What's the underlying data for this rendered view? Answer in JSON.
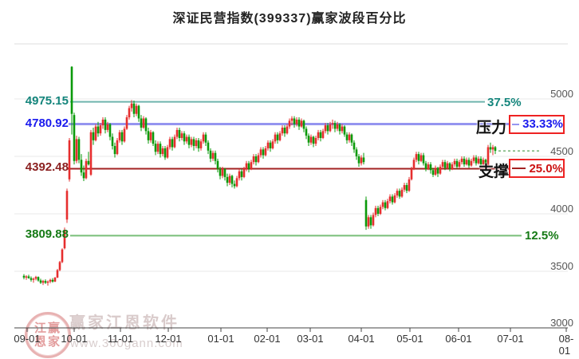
{
  "title": "深证民营指数(399337)赢家波段百分比",
  "watermark": {
    "seal_line1": "江赢",
    "seal_line2": "恩家",
    "brand": "赢家江恩软件",
    "site": "www.360gann.com"
  },
  "chart_data": {
    "type": "candlestick",
    "title": "深证民营指数(399337)赢家波段百分比",
    "up_color": "#e62e2e",
    "down_color": "#0a9a0a",
    "grid": "horizontal only",
    "y_axis": {
      "ticks": [
        5000,
        4500,
        4000,
        3500,
        3000
      ],
      "min": 3000,
      "max": 5000
    },
    "x_axis": {
      "labels": [
        "09-01",
        "10-01",
        "11-01",
        "12-01",
        "01-01",
        "02-01",
        "03-01",
        "04-01",
        "05-01",
        "06-01",
        "07-01",
        "08-01"
      ],
      "positions": [
        34,
        93,
        151,
        211,
        277,
        335,
        389,
        453,
        514,
        575,
        640,
        710
      ]
    },
    "levels": [
      {
        "label": "4975.15",
        "value": 4975.15,
        "pct": "37.5%",
        "line_color": "#6fb5ae",
        "text_color": "#14857c",
        "pct_color": "#14857c",
        "boxed": false
      },
      {
        "label": "4780.92",
        "value": 4780.92,
        "pct": "33.33%",
        "name": "压力",
        "line_color": "#9595f0",
        "text_color": "#1a1aee",
        "pct_color": "#1a1aee",
        "boxed": true
      },
      {
        "label": "4392.48",
        "value": 4392.48,
        "pct": "25.0%",
        "name": "支撑",
        "line_color": "#a32222",
        "text_color": "#8b2020",
        "pct_color": "#cc1111",
        "boxed": true
      },
      {
        "label": "3809.88",
        "value": 3809.88,
        "pct": "12.5%",
        "line_color": "#79bf79",
        "text_color": "#157a15",
        "pct_color": "#157a15",
        "boxed": false
      }
    ],
    "last_close": 4548,
    "last_close_line_color": "#2e8b2e",
    "candles": [
      [
        3460,
        3475,
        3430,
        3445
      ],
      [
        3445,
        3465,
        3425,
        3455
      ],
      [
        3455,
        3470,
        3435,
        3440
      ],
      [
        3440,
        3455,
        3410,
        3425
      ],
      [
        3425,
        3445,
        3400,
        3435
      ],
      [
        3435,
        3460,
        3420,
        3450
      ],
      [
        3450,
        3455,
        3410,
        3420
      ],
      [
        3420,
        3435,
        3390,
        3400
      ],
      [
        3400,
        3425,
        3380,
        3415
      ],
      [
        3415,
        3430,
        3390,
        3400
      ],
      [
        3400,
        3420,
        3375,
        3410
      ],
      [
        3410,
        3435,
        3395,
        3425
      ],
      [
        3425,
        3440,
        3400,
        3410
      ],
      [
        3410,
        3450,
        3405,
        3445
      ],
      [
        3445,
        3520,
        3440,
        3510
      ],
      [
        3510,
        3590,
        3500,
        3580
      ],
      [
        3580,
        3700,
        3570,
        3690
      ],
      [
        3700,
        3880,
        3690,
        3860
      ],
      [
        3950,
        4220,
        3920,
        4200
      ],
      [
        4300,
        4660,
        4280,
        4640
      ],
      [
        5280,
        5285,
        4690,
        4870
      ],
      [
        4860,
        4880,
        4430,
        4460
      ],
      [
        4460,
        4680,
        4440,
        4650
      ],
      [
        4650,
        4670,
        4440,
        4470
      ],
      [
        4470,
        4520,
        4330,
        4360
      ],
      [
        4360,
        4420,
        4285,
        4310
      ],
      [
        4310,
        4480,
        4300,
        4460
      ],
      [
        4460,
        4540,
        4420,
        4430
      ],
      [
        4340,
        4730,
        4330,
        4710
      ],
      [
        4710,
        4750,
        4600,
        4640
      ],
      [
        4640,
        4780,
        4630,
        4760
      ],
      [
        4760,
        4800,
        4670,
        4700
      ],
      [
        4700,
        4790,
        4680,
        4770
      ],
      [
        4770,
        4840,
        4740,
        4820
      ],
      [
        4820,
        4840,
        4700,
        4730
      ],
      [
        4730,
        4800,
        4710,
        4780
      ],
      [
        4780,
        4790,
        4640,
        4670
      ],
      [
        4670,
        4700,
        4560,
        4590
      ],
      [
        4590,
        4620,
        4490,
        4520
      ],
      [
        4520,
        4660,
        4510,
        4640
      ],
      [
        4640,
        4730,
        4620,
        4710
      ],
      [
        4710,
        4730,
        4600,
        4630
      ],
      [
        4630,
        4760,
        4620,
        4740
      ],
      [
        4740,
        4860,
        4730,
        4840
      ],
      [
        4840,
        4940,
        4820,
        4920
      ],
      [
        4920,
        4990,
        4890,
        4960
      ],
      [
        4960,
        4985,
        4840,
        4870
      ],
      [
        4870,
        4960,
        4850,
        4940
      ],
      [
        4940,
        4950,
        4800,
        4830
      ],
      [
        4830,
        4860,
        4720,
        4750
      ],
      [
        4750,
        4850,
        4740,
        4830
      ],
      [
        4830,
        4840,
        4690,
        4720
      ],
      [
        4720,
        4750,
        4610,
        4640
      ],
      [
        4640,
        4730,
        4620,
        4710
      ],
      [
        4710,
        4720,
        4590,
        4610
      ],
      [
        4610,
        4640,
        4510,
        4540
      ],
      [
        4540,
        4630,
        4520,
        4610
      ],
      [
        4610,
        4630,
        4490,
        4520
      ],
      [
        4520,
        4590,
        4500,
        4570
      ],
      [
        4570,
        4590,
        4470,
        4490
      ],
      [
        4490,
        4600,
        4480,
        4580
      ],
      [
        4580,
        4670,
        4560,
        4650
      ],
      [
        4650,
        4670,
        4550,
        4580
      ],
      [
        4580,
        4690,
        4570,
        4670
      ],
      [
        4670,
        4750,
        4650,
        4730
      ],
      [
        4730,
        4750,
        4630,
        4660
      ],
      [
        4660,
        4720,
        4640,
        4700
      ],
      [
        4700,
        4720,
        4600,
        4630
      ],
      [
        4630,
        4690,
        4610,
        4670
      ],
      [
        4670,
        4690,
        4570,
        4600
      ],
      [
        4600,
        4670,
        4580,
        4650
      ],
      [
        4650,
        4670,
        4550,
        4590
      ],
      [
        4590,
        4660,
        4570,
        4640
      ],
      [
        4640,
        4660,
        4540,
        4570
      ],
      [
        4570,
        4650,
        4550,
        4630
      ],
      [
        4630,
        4710,
        4610,
        4690
      ],
      [
        4690,
        4710,
        4590,
        4620
      ],
      [
        4620,
        4640,
        4520,
        4550
      ],
      [
        4550,
        4570,
        4450,
        4480
      ],
      [
        4480,
        4550,
        4460,
        4530
      ],
      [
        4530,
        4550,
        4430,
        4460
      ],
      [
        4460,
        4480,
        4360,
        4390
      ],
      [
        4390,
        4410,
        4300,
        4330
      ],
      [
        4330,
        4410,
        4310,
        4390
      ],
      [
        4390,
        4400,
        4290,
        4320
      ],
      [
        4320,
        4350,
        4240,
        4270
      ],
      [
        4270,
        4350,
        4250,
        4330
      ],
      [
        4330,
        4340,
        4230,
        4260
      ],
      [
        4260,
        4290,
        4220,
        4240
      ],
      [
        4240,
        4330,
        4230,
        4310
      ],
      [
        4310,
        4390,
        4290,
        4370
      ],
      [
        4370,
        4390,
        4290,
        4320
      ],
      [
        4320,
        4410,
        4310,
        4390
      ],
      [
        4390,
        4460,
        4370,
        4440
      ],
      [
        4440,
        4460,
        4360,
        4390
      ],
      [
        4390,
        4470,
        4380,
        4450
      ],
      [
        4450,
        4520,
        4430,
        4500
      ],
      [
        4500,
        4520,
        4420,
        4450
      ],
      [
        4450,
        4530,
        4440,
        4510
      ],
      [
        4510,
        4580,
        4490,
        4560
      ],
      [
        4560,
        4580,
        4480,
        4510
      ],
      [
        4510,
        4590,
        4500,
        4570
      ],
      [
        4570,
        4640,
        4550,
        4620
      ],
      [
        4620,
        4640,
        4540,
        4570
      ],
      [
        4570,
        4650,
        4560,
        4630
      ],
      [
        4630,
        4710,
        4610,
        4690
      ],
      [
        4690,
        4710,
        4610,
        4640
      ],
      [
        4640,
        4720,
        4630,
        4700
      ],
      [
        4700,
        4770,
        4680,
        4750
      ],
      [
        4750,
        4770,
        4670,
        4700
      ],
      [
        4700,
        4780,
        4690,
        4760
      ],
      [
        4760,
        4830,
        4740,
        4810
      ],
      [
        4810,
        4850,
        4770,
        4830
      ],
      [
        4830,
        4850,
        4750,
        4780
      ],
      [
        4780,
        4840,
        4760,
        4820
      ],
      [
        4820,
        4840,
        4730,
        4760
      ],
      [
        4760,
        4830,
        4750,
        4810
      ],
      [
        4810,
        4820,
        4710,
        4740
      ],
      [
        4740,
        4760,
        4650,
        4680
      ],
      [
        4680,
        4700,
        4590,
        4620
      ],
      [
        4620,
        4690,
        4600,
        4670
      ],
      [
        4670,
        4680,
        4580,
        4610
      ],
      [
        4610,
        4680,
        4590,
        4660
      ],
      [
        4660,
        4730,
        4640,
        4710
      ],
      [
        4710,
        4730,
        4630,
        4660
      ],
      [
        4660,
        4740,
        4650,
        4720
      ],
      [
        4720,
        4790,
        4700,
        4770
      ],
      [
        4770,
        4790,
        4690,
        4720
      ],
      [
        4720,
        4800,
        4710,
        4780
      ],
      [
        4780,
        4820,
        4740,
        4790
      ],
      [
        4790,
        4810,
        4710,
        4740
      ],
      [
        4740,
        4800,
        4720,
        4780
      ],
      [
        4780,
        4790,
        4690,
        4720
      ],
      [
        4720,
        4780,
        4700,
        4760
      ],
      [
        4760,
        4770,
        4670,
        4690
      ],
      [
        4690,
        4710,
        4610,
        4640
      ],
      [
        4640,
        4710,
        4620,
        4690
      ],
      [
        4690,
        4700,
        4590,
        4620
      ],
      [
        4620,
        4640,
        4530,
        4560
      ],
      [
        4560,
        4580,
        4470,
        4500
      ],
      [
        4500,
        4520,
        4410,
        4440
      ],
      [
        4440,
        4510,
        4420,
        4490
      ],
      [
        4490,
        4530,
        4430,
        4450
      ],
      [
        4120,
        4150,
        3860,
        3890
      ],
      [
        3890,
        3990,
        3870,
        3970
      ],
      [
        3970,
        3990,
        3870,
        3900
      ],
      [
        3900,
        4010,
        3890,
        3990
      ],
      [
        3990,
        4070,
        3970,
        4050
      ],
      [
        4050,
        4070,
        3980,
        4000
      ],
      [
        4000,
        4080,
        3990,
        4060
      ],
      [
        4060,
        4120,
        4040,
        4100
      ],
      [
        4100,
        4120,
        4030,
        4050
      ],
      [
        4050,
        4130,
        4040,
        4110
      ],
      [
        4110,
        4170,
        4090,
        4150
      ],
      [
        4150,
        4170,
        4080,
        4100
      ],
      [
        4100,
        4180,
        4090,
        4160
      ],
      [
        4160,
        4220,
        4140,
        4200
      ],
      [
        4200,
        4220,
        4130,
        4150
      ],
      [
        4150,
        4230,
        4140,
        4210
      ],
      [
        4210,
        4270,
        4190,
        4250
      ],
      [
        4250,
        4270,
        4180,
        4200
      ],
      [
        4200,
        4320,
        4190,
        4300
      ],
      [
        4300,
        4410,
        4290,
        4390
      ],
      [
        4390,
        4490,
        4380,
        4470
      ],
      [
        4470,
        4540,
        4450,
        4520
      ],
      [
        4520,
        4540,
        4430,
        4460
      ],
      [
        4460,
        4530,
        4450,
        4510
      ],
      [
        4510,
        4530,
        4420,
        4440
      ],
      [
        4440,
        4460,
        4370,
        4390
      ],
      [
        4390,
        4450,
        4380,
        4430
      ],
      [
        4430,
        4450,
        4350,
        4380
      ],
      [
        4380,
        4400,
        4320,
        4340
      ],
      [
        4340,
        4420,
        4330,
        4400
      ],
      [
        4400,
        4410,
        4320,
        4350
      ],
      [
        4350,
        4430,
        4340,
        4410
      ],
      [
        4410,
        4470,
        4390,
        4450
      ],
      [
        4450,
        4470,
        4380,
        4400
      ],
      [
        4400,
        4460,
        4390,
        4440
      ],
      [
        4440,
        4450,
        4370,
        4390
      ],
      [
        4390,
        4450,
        4380,
        4430
      ],
      [
        4430,
        4480,
        4410,
        4460
      ],
      [
        4460,
        4480,
        4390,
        4410
      ],
      [
        4410,
        4470,
        4400,
        4450
      ],
      [
        4450,
        4500,
        4430,
        4480
      ],
      [
        4480,
        4500,
        4410,
        4430
      ],
      [
        4430,
        4490,
        4420,
        4470
      ],
      [
        4470,
        4490,
        4400,
        4420
      ],
      [
        4420,
        4480,
        4410,
        4460
      ],
      [
        4460,
        4510,
        4440,
        4490
      ],
      [
        4490,
        4510,
        4420,
        4440
      ],
      [
        4440,
        4500,
        4430,
        4480
      ],
      [
        4480,
        4500,
        4410,
        4430
      ],
      [
        4430,
        4490,
        4420,
        4470
      ],
      [
        4470,
        4480,
        4400,
        4420
      ],
      [
        4420,
        4600,
        4410,
        4580
      ],
      [
        4580,
        4620,
        4530,
        4560
      ],
      [
        4560,
        4600,
        4510,
        4580
      ],
      [
        4580,
        4590,
        4520,
        4548
      ]
    ]
  }
}
